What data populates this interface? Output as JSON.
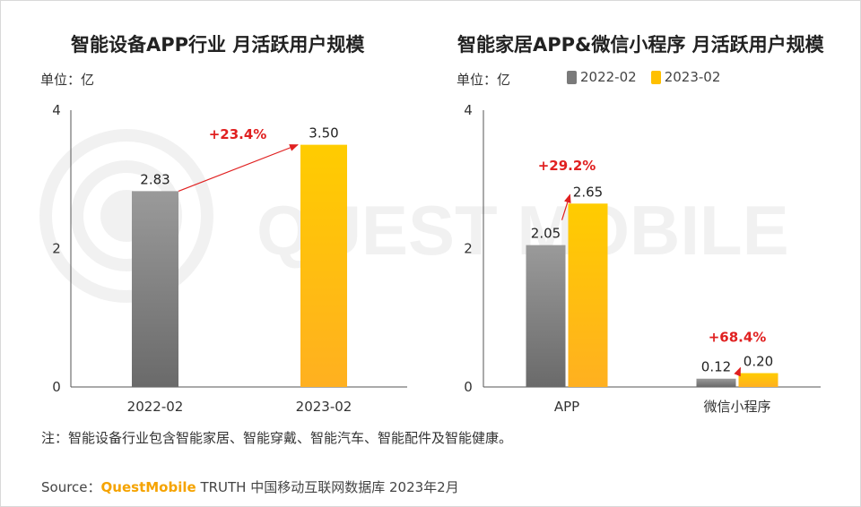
{
  "colors": {
    "gray": "#7a7a7a",
    "yellow": "#ffc000",
    "arrow": "#e02020"
  },
  "watermark": "QUEST MOBILE",
  "unit_label": "单位：亿",
  "legend": [
    "2022-02",
    "2023-02"
  ],
  "footer": {
    "note": "注：智能设备行业包含智能家居、智能穿戴、智能汽车、智能配件及智能健康。",
    "source_prefix": "Source：",
    "source_brand": "QuestMobile",
    "source_rest": " TRUTH 中国移动互联网数据库 2023年2月"
  },
  "chart_data": [
    {
      "type": "bar",
      "title": "智能设备APP行业 月活跃用户规模",
      "ylabel": "单位：亿",
      "ylim": [
        0,
        4
      ],
      "yticks": [
        0,
        2,
        4
      ],
      "categories": [
        "2022-02",
        "2023-02"
      ],
      "series": [
        {
          "values": [
            2.83,
            3.5
          ],
          "labels": [
            "2.83",
            "3.50"
          ],
          "colors": [
            "gray",
            "yellow"
          ]
        }
      ],
      "annotations": [
        {
          "from": 0,
          "to": 1,
          "text": "+23.4%"
        }
      ]
    },
    {
      "type": "bar",
      "title": "智能家居APP&微信小程序 月活跃用户规模",
      "ylabel": "单位：亿",
      "ylim": [
        0,
        4
      ],
      "yticks": [
        0,
        2,
        4
      ],
      "categories": [
        "APP",
        "微信小程序"
      ],
      "series": [
        {
          "name": "2022-02",
          "values": [
            2.05,
            0.12
          ],
          "labels": [
            "2.05",
            "0.12"
          ]
        },
        {
          "name": "2023-02",
          "values": [
            2.65,
            0.2
          ],
          "labels": [
            "2.65",
            "0.20"
          ]
        }
      ],
      "annotations": [
        {
          "category": 0,
          "text": "+29.2%"
        },
        {
          "category": 1,
          "text": "+68.4%"
        }
      ]
    }
  ]
}
